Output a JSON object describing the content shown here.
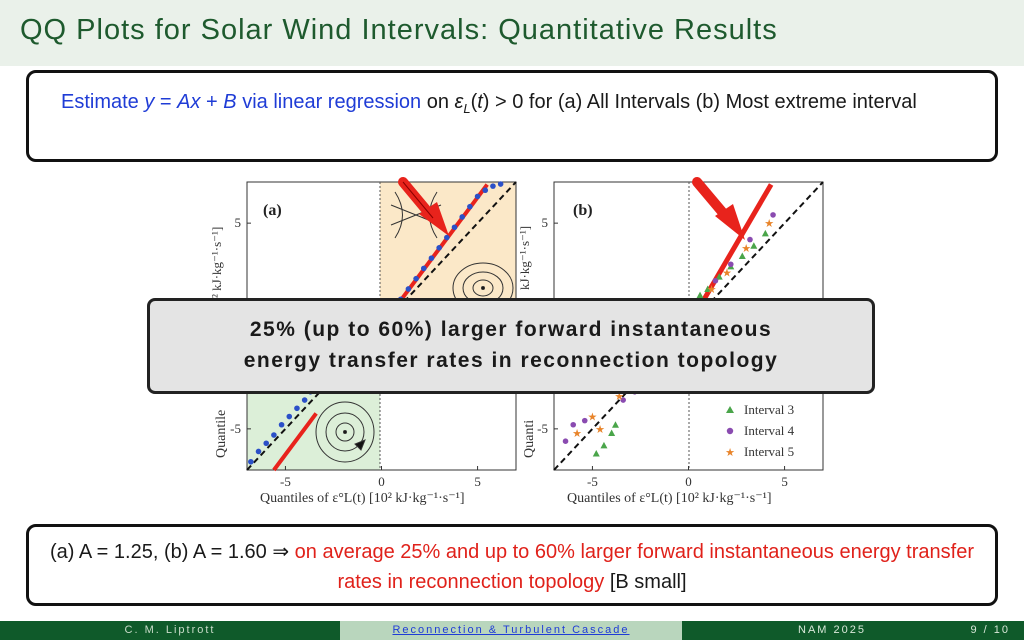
{
  "slide": {
    "title": "QQ Plots for Solar Wind Intervals: Quantitative Results",
    "top_box": {
      "prefix": "Estimate ",
      "eq_y": "y",
      "eq_eq": " = ",
      "eq_A": "A",
      "eq_x": "x",
      "eq_plus": " + ",
      "eq_B": "B",
      "via": "  via linear regression",
      "on": " on ",
      "eps": "ε",
      "eps_sub": "L",
      "t_part": "(",
      "t_var": "t",
      "t_close": ") > 0 for (a) All Intervals (b) Most extreme interval"
    },
    "callout": {
      "line1": "25% (up to 60%) larger forward instantaneous",
      "line2": "energy transfer rates in reconnection topology"
    },
    "bottom_box": {
      "black1": "(a) A = 1.25, (b) A = 1.60 ⇒ ",
      "red": "on average 25% and up to 60% larger forward instantaneous energy transfer rates in reconnection topology",
      "black2": " [B small]"
    },
    "footer": {
      "author": "C. M. Liptrott",
      "talk": "Reconnection & Turbulent Cascade",
      "venue": "NAM 2025",
      "page": "9 / 10"
    }
  },
  "colors": {
    "title": "#1e5a2e",
    "title_bar": "#eaf1ea",
    "blue_text": "#1f3cd6",
    "red_text": "#e0211a",
    "fit_line": "#e8231c",
    "data_blue": "#2b50c8",
    "arrow": "#e8231c",
    "shade_orange": "#fbe8c8",
    "shade_green": "#dcefd8",
    "footer_dark": "#0f5a2a",
    "footer_light": "#b9d6bd"
  },
  "chart_data": [
    {
      "type": "scatter",
      "panel_label": "(a)",
      "xlabel": "Quantiles of ε°L(t) [10² kJ·kg⁻¹·s⁻¹]",
      "ylabel": "Quantiles of ε²L(t) [10² kJ·kg⁻¹·s⁻¹]",
      "ylabel_visible_top": "² kJ·kg⁻¹·s⁻¹]",
      "ylabel_visible_bottom": "Quantile",
      "xlim": [
        -7,
        7
      ],
      "ylim": [
        -7,
        7
      ],
      "xticks": [
        -5,
        0,
        5
      ],
      "yticks": [
        -5,
        5
      ],
      "reference_line": "y = x (dashed)",
      "fit_slope": 1.25,
      "series": [
        {
          "x": [
            -6.8,
            -6.4,
            -6.0,
            -5.6,
            -5.2,
            -4.8,
            -4.4,
            -4.0,
            -3.7,
            -3.4,
            0.3,
            0.6,
            1.0,
            1.4,
            1.8,
            2.2,
            2.6,
            3.0,
            3.4,
            3.8,
            4.2,
            4.6,
            5.0,
            5.4,
            5.8,
            6.2
          ],
          "y": [
            -6.6,
            -6.1,
            -5.7,
            -5.3,
            -4.8,
            -4.4,
            -4.0,
            -3.6,
            -3.2,
            -2.8,
            0.4,
            0.8,
            1.3,
            1.8,
            2.3,
            2.8,
            3.3,
            3.8,
            4.3,
            4.8,
            5.3,
            5.8,
            6.3,
            6.6,
            6.8,
            6.9
          ]
        }
      ]
    },
    {
      "type": "scatter",
      "panel_label": "(b)",
      "xlabel": "Quantiles of ε°L(t) [10² kJ·kg⁻¹·s⁻¹]",
      "ylabel": "Quantiles of ε²L(t) [10² kJ·kg⁻¹·s⁻¹]",
      "ylabel_visible_top": "kJ·kg⁻¹·s⁻¹]",
      "ylabel_visible_bottom": "Quanti",
      "xlim": [
        -7,
        7
      ],
      "ylim": [
        -7,
        7
      ],
      "xticks": [
        -5,
        0,
        5
      ],
      "yticks": [
        -5,
        5
      ],
      "reference_line": "y = x (dashed)",
      "fit_slope": 1.6,
      "series": [
        {
          "name": "Interval 3",
          "marker": "triangle",
          "color": "#4aa54a",
          "x": [
            -4.8,
            -4.4,
            -4.0,
            -3.8,
            0.6,
            1.0,
            1.6,
            2.2,
            2.8,
            3.4,
            4.0
          ],
          "y": [
            -6.2,
            -5.8,
            -5.2,
            -4.8,
            1.5,
            1.8,
            2.4,
            2.9,
            3.4,
            3.9,
            4.5
          ]
        },
        {
          "name": "Interval 4",
          "marker": "circle",
          "color": "#8a4bb0",
          "x": [
            -6.4,
            -6.0,
            -5.4,
            -3.4,
            -2.8,
            0.8,
            1.4,
            2.2,
            3.2,
            4.4
          ],
          "y": [
            -5.6,
            -4.8,
            -4.6,
            -3.6,
            -3.2,
            1.2,
            2.2,
            3.0,
            4.2,
            5.4
          ]
        },
        {
          "name": "Interval 5",
          "marker": "star",
          "color": "#e8842a",
          "x": [
            -5.8,
            -5.0,
            -4.6,
            -3.6,
            -2.6,
            0.6,
            1.2,
            2.0,
            3.0,
            4.2
          ],
          "y": [
            -5.2,
            -4.4,
            -5.0,
            -3.4,
            -3.0,
            1.0,
            1.8,
            2.6,
            3.8,
            5.0
          ]
        }
      ]
    }
  ]
}
